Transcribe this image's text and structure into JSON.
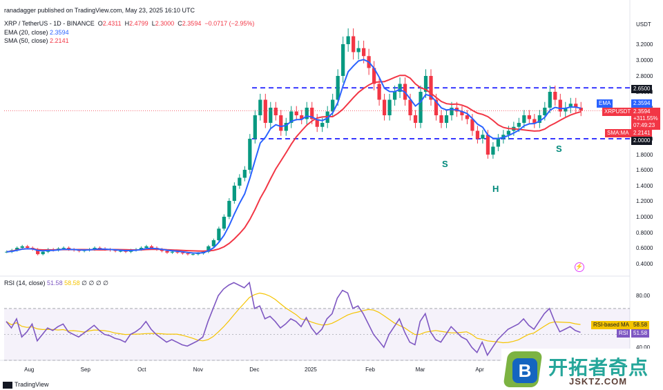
{
  "header": {
    "published": "ranadagger published on TradingView.com, May 23, 2025 16:10 UTC",
    "symbol": "XRP / TetherUS - 1D - BINANCE",
    "o_label": "O",
    "o_value": "2.4311",
    "h_label": "H",
    "h_value": "2.4799",
    "l_label": "L",
    "l_value": "2.3000",
    "c_label": "C",
    "c_value": "2.3594",
    "change": "−0.0717 (−2.95%)",
    "ema_label": "EMA (20, close)",
    "ema_value": "2.3594",
    "sma_label": "SMA (50, close)",
    "sma_value": "2.2141",
    "rsi_label": "RSI (14, close)",
    "rsi_value": "51.58",
    "rsi_ma_value": "58.58",
    "rsi_extra": "∅ ∅ ∅ ∅"
  },
  "currency": "USDT",
  "price_tags": {
    "resistance": "2.6500",
    "ema_name": "EMA",
    "ema": "2.3594",
    "symbol_name": "XRPUSDT",
    "last": "2.3594",
    "pct": "+311.55%",
    "countdown": "07:49:23",
    "sma_name": "SMA:MA",
    "sma": "2.2141",
    "support": "2.0000",
    "rsi_ma_name": "RSI-based MA",
    "rsi_ma": "58.58",
    "rsi_name": "RSI",
    "rsi": "51.58"
  },
  "annotations": [
    {
      "text": "S",
      "name": "left-shoulder-label"
    },
    {
      "text": "H",
      "name": "head-label"
    },
    {
      "text": "S",
      "name": "right-shoulder-label"
    }
  ],
  "brand": "TradingView",
  "watermark": {
    "main": "开拓者奇点",
    "sub": "JSKTZ.COM",
    "letter": "B"
  },
  "colors": {
    "up": "#089981",
    "down": "#f23645",
    "ema": "#2962ff",
    "sma": "#f23645",
    "rsi": "#7e57c2",
    "rsi_ma": "#f5c400",
    "level_line": "#1a1aff",
    "pattern_label": "#00897b"
  },
  "chart_data": [
    {
      "type": "candlestick",
      "title": "XRP / TetherUS - 1D - BINANCE",
      "ylabel": "USDT",
      "ylim": [
        0.3,
        3.5
      ],
      "y_ticks": [
        "3.2000",
        "3.0000",
        "2.8000",
        "2.6000",
        "2.4000",
        "2.2000",
        "2.0000",
        "1.8000",
        "1.6000",
        "1.4000",
        "1.2000",
        "1.0000",
        "0.8000",
        "0.6000",
        "0.4000"
      ],
      "y_tick_values": [
        3.2,
        3.0,
        2.8,
        2.6,
        2.4,
        2.2,
        2.0,
        1.8,
        1.6,
        1.4,
        1.2,
        1.0,
        0.8,
        0.6,
        0.4
      ],
      "x_ticks": [
        "Aug",
        "Sep",
        "Oct",
        "Nov",
        "Dec",
        "2025",
        "Feb",
        "Mar",
        "Apr"
      ],
      "x_tick_positions": [
        0.04,
        0.13,
        0.22,
        0.31,
        0.4,
        0.49,
        0.585,
        0.665,
        0.76
      ],
      "horizontal_levels": [
        2.65,
        2.0
      ],
      "close": [
        0.55,
        0.57,
        0.6,
        0.62,
        0.6,
        0.58,
        0.52,
        0.55,
        0.58,
        0.57,
        0.59,
        0.6,
        0.58,
        0.57,
        0.56,
        0.57,
        0.58,
        0.6,
        0.59,
        0.58,
        0.57,
        0.56,
        0.56,
        0.55,
        0.57,
        0.58,
        0.6,
        0.62,
        0.6,
        0.58,
        0.56,
        0.54,
        0.55,
        0.54,
        0.53,
        0.52,
        0.52,
        0.53,
        0.55,
        0.62,
        0.7,
        0.85,
        1.0,
        1.2,
        1.4,
        1.5,
        1.6,
        2.0,
        2.3,
        2.5,
        2.2,
        2.4,
        2.3,
        2.1,
        2.2,
        2.35,
        2.3,
        2.25,
        2.4,
        2.25,
        2.15,
        2.2,
        2.35,
        2.5,
        2.8,
        3.2,
        3.3,
        3.1,
        3.15,
        3.05,
        2.9,
        2.7,
        2.5,
        2.3,
        2.5,
        2.6,
        2.7,
        2.5,
        2.3,
        2.2,
        2.6,
        2.8,
        2.5,
        2.3,
        2.2,
        2.3,
        2.4,
        2.35,
        2.3,
        2.25,
        2.1,
        2.0,
        2.05,
        1.8,
        1.9,
        2.0,
        2.05,
        2.1,
        2.15,
        2.2,
        2.3,
        2.25,
        2.2,
        2.3,
        2.4,
        2.6,
        2.5,
        2.35,
        2.4,
        2.45,
        2.4,
        2.36
      ],
      "ema20_end": 2.3594,
      "sma50_end": 2.2141,
      "patterns": [
        "left shoulder",
        "head",
        "right shoulder"
      ]
    },
    {
      "type": "line",
      "title": "RSI (14, close)",
      "ylim": [
        30,
        95
      ],
      "y_ticks": [
        "80.00",
        "40.00"
      ],
      "y_tick_values": [
        80,
        40
      ],
      "bands": [
        70,
        30
      ],
      "series": [
        {
          "name": "RSI",
          "last": 51.58,
          "values": [
            60,
            55,
            62,
            48,
            52,
            58,
            45,
            50,
            55,
            53,
            56,
            58,
            52,
            50,
            48,
            51,
            54,
            57,
            53,
            50,
            49,
            47,
            46,
            44,
            50,
            52,
            55,
            60,
            54,
            50,
            47,
            44,
            46,
            44,
            42,
            41,
            43,
            45,
            48,
            60,
            70,
            80,
            85,
            88,
            90,
            88,
            86,
            90,
            70,
            72,
            62,
            64,
            60,
            55,
            58,
            62,
            60,
            56,
            63,
            55,
            50,
            54,
            62,
            66,
            78,
            84,
            82,
            70,
            72,
            66,
            58,
            50,
            45,
            40,
            50,
            56,
            62,
            52,
            44,
            42,
            60,
            66,
            52,
            46,
            44,
            50,
            56,
            52,
            48,
            46,
            40,
            36,
            44,
            34,
            40,
            46,
            50,
            54,
            56,
            58,
            62,
            57,
            54,
            60,
            66,
            70,
            60,
            52,
            54,
            56,
            53,
            51.58
          ]
        },
        {
          "name": "RSI-based MA",
          "last": 58.58
        }
      ]
    }
  ]
}
